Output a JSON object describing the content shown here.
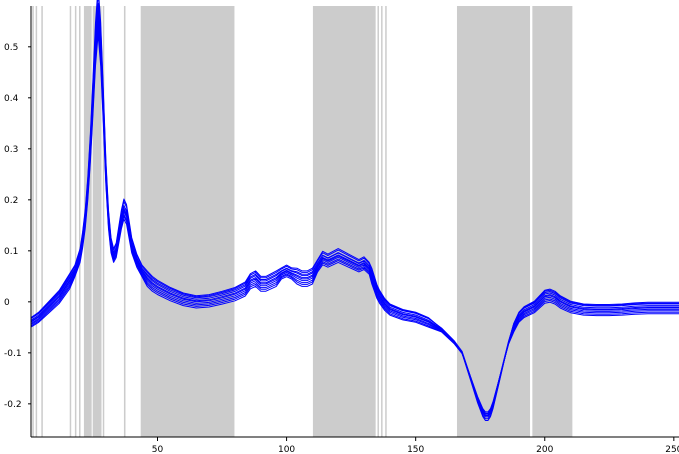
{
  "chart_data": {
    "type": "line",
    "title": "",
    "xlabel": "",
    "ylabel": "",
    "xlim": [
      1,
      252
    ],
    "ylim": [
      -0.265,
      0.58
    ],
    "x_ticks": [
      {
        "value": 50,
        "label": "50"
      },
      {
        "value": 100,
        "label": "100"
      },
      {
        "value": 150,
        "label": "150"
      },
      {
        "value": 200,
        "label": "200"
      },
      {
        "value": 250,
        "label": "250"
      }
    ],
    "y_ticks": [
      {
        "value": 0.5,
        "label": "0.5"
      },
      {
        "value": 0.4,
        "label": "0.4"
      },
      {
        "value": 0.3,
        "label": "0.3"
      },
      {
        "value": 0.2,
        "label": "0.2"
      },
      {
        "value": 0.1,
        "label": "0.1"
      },
      {
        "value": 0,
        "label": "0"
      },
      {
        "value": -0.1,
        "label": "-0.1"
      },
      {
        "value": -0.2,
        "label": "-0.2"
      }
    ],
    "grid": false,
    "series_color": "#0000ff",
    "band_color": "#cccccc",
    "highlighted_regions": [
      {
        "start": 1.5,
        "end": 2.0
      },
      {
        "start": 2.8,
        "end": 3.3
      },
      {
        "start": 5.0,
        "end": 5.5
      },
      {
        "start": 16.0,
        "end": 16.5
      },
      {
        "start": 18.0,
        "end": 18.5
      },
      {
        "start": 19.6,
        "end": 20.1
      },
      {
        "start": 21.5,
        "end": 24.5
      },
      {
        "start": 24.9,
        "end": 28.3
      },
      {
        "start": 28.8,
        "end": 29.3
      },
      {
        "start": 37.0,
        "end": 37.6
      },
      {
        "start": 43.5,
        "end": 79.8
      },
      {
        "start": 110.2,
        "end": 134.5
      },
      {
        "start": 135.2,
        "end": 135.7
      },
      {
        "start": 136.6,
        "end": 137.1
      },
      {
        "start": 138.2,
        "end": 138.7
      },
      {
        "start": 166.0,
        "end": 194.3
      },
      {
        "start": 195.2,
        "end": 210.7
      }
    ],
    "series": [
      {
        "offset": -0.012,
        "scale": 0.94
      },
      {
        "offset": -0.006,
        "scale": 0.97
      },
      {
        "offset": 0.0,
        "scale": 1.0
      },
      {
        "offset": 0.005,
        "scale": 1.03
      },
      {
        "offset": 0.01,
        "scale": 1.06
      },
      {
        "offset": -0.003,
        "scale": 0.99
      },
      {
        "offset": 0.008,
        "scale": 1.02
      },
      {
        "offset": -0.009,
        "scale": 0.96
      },
      {
        "offset": 0.012,
        "scale": 1.08
      },
      {
        "offset": 0.002,
        "scale": 1.01
      }
    ],
    "base_curve": {
      "x": [
        1,
        4,
        8,
        12,
        16,
        18,
        20,
        21,
        22,
        23,
        24,
        25,
        26,
        27,
        28,
        29,
        30,
        31,
        32,
        33,
        34,
        35,
        36,
        37,
        38,
        39,
        40,
        42,
        44,
        46,
        48,
        50,
        55,
        60,
        65,
        70,
        75,
        80,
        84,
        86,
        88,
        90,
        92,
        94,
        96,
        98,
        100,
        102,
        104,
        106,
        108,
        110,
        112,
        114,
        116,
        118,
        120,
        122,
        124,
        126,
        128,
        130,
        132,
        133,
        134,
        135,
        136,
        138,
        140,
        145,
        150,
        155,
        160,
        165,
        168,
        170,
        172,
        174,
        176,
        177,
        178,
        179,
        180,
        182,
        184,
        186,
        188,
        190,
        192,
        194,
        196,
        198,
        200,
        202,
        204,
        206,
        208,
        210,
        215,
        220,
        225,
        230,
        235,
        240,
        245,
        250,
        252
      ],
      "y": [
        -0.04,
        -0.03,
        -0.01,
        0.01,
        0.04,
        0.06,
        0.09,
        0.12,
        0.16,
        0.22,
        0.3,
        0.4,
        0.5,
        0.565,
        0.5,
        0.38,
        0.25,
        0.16,
        0.11,
        0.09,
        0.1,
        0.13,
        0.16,
        0.18,
        0.17,
        0.14,
        0.11,
        0.08,
        0.06,
        0.045,
        0.035,
        0.028,
        0.015,
        0.005,
        0.0,
        0.002,
        0.008,
        0.015,
        0.025,
        0.04,
        0.045,
        0.035,
        0.035,
        0.04,
        0.045,
        0.055,
        0.06,
        0.055,
        0.05,
        0.045,
        0.045,
        0.05,
        0.07,
        0.085,
        0.08,
        0.085,
        0.09,
        0.085,
        0.08,
        0.075,
        0.07,
        0.075,
        0.065,
        0.05,
        0.035,
        0.02,
        0.01,
        -0.005,
        -0.015,
        -0.025,
        -0.03,
        -0.04,
        -0.055,
        -0.08,
        -0.1,
        -0.13,
        -0.16,
        -0.19,
        -0.215,
        -0.222,
        -0.222,
        -0.215,
        -0.2,
        -0.16,
        -0.12,
        -0.08,
        -0.05,
        -0.03,
        -0.02,
        -0.015,
        -0.01,
        0.0,
        0.01,
        0.012,
        0.008,
        0.0,
        -0.005,
        -0.01,
        -0.015,
        -0.016,
        -0.016,
        -0.015,
        -0.013,
        -0.012,
        -0.012,
        -0.012,
        -0.012
      ]
    }
  }
}
